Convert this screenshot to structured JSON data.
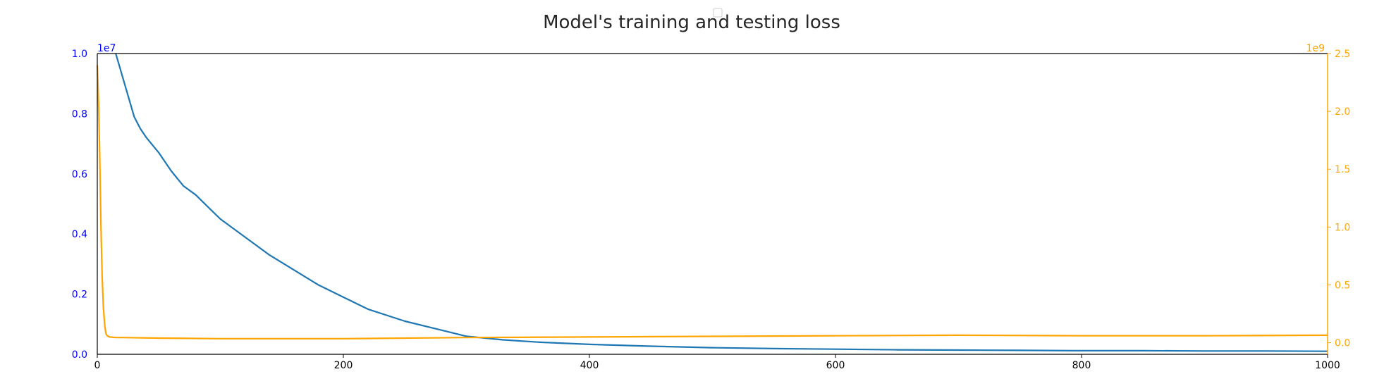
{
  "chart_data": {
    "type": "line",
    "title": "Model's training and testing loss",
    "xlabel": "",
    "xlim": [
      0,
      1000
    ],
    "x_ticks": [
      0,
      200,
      400,
      600,
      800,
      1000
    ],
    "grid": false,
    "legend": "top-center (empty)",
    "axes": {
      "left": {
        "ylabel": "",
        "ylim": [
          0,
          1.0
        ],
        "ticks": [
          "0.0",
          "0.2",
          "0.4",
          "0.6",
          "0.8",
          "1.0"
        ],
        "tick_values": [
          0,
          0.2,
          0.4,
          0.6,
          0.8,
          1.0
        ],
        "scale_label": "1e7",
        "color": "#0000ff"
      },
      "right": {
        "ylabel": "",
        "ylim": [
          -0.1,
          2.5
        ],
        "ticks": [
          "0.0",
          "0.5",
          "1.0",
          "1.5",
          "2.0",
          "2.5"
        ],
        "tick_values": [
          0,
          0.5,
          1.0,
          1.5,
          2.0,
          2.5
        ],
        "scale_label": "1e9",
        "color": "#ffa500"
      }
    },
    "series": [
      {
        "axis": "left",
        "color": "#1f77b4",
        "x": [
          15,
          20,
          25,
          30,
          35,
          40,
          50,
          60,
          70,
          80,
          90,
          100,
          120,
          140,
          160,
          180,
          200,
          220,
          250,
          280,
          300,
          330,
          360,
          400,
          450,
          500,
          550,
          600,
          650,
          700,
          750,
          800,
          850,
          900,
          950,
          1000
        ],
        "y": [
          1.0,
          0.93,
          0.86,
          0.79,
          0.75,
          0.72,
          0.67,
          0.61,
          0.56,
          0.53,
          0.49,
          0.45,
          0.39,
          0.33,
          0.28,
          0.23,
          0.19,
          0.15,
          0.11,
          0.08,
          0.06,
          0.048,
          0.04,
          0.033,
          0.027,
          0.022,
          0.019,
          0.017,
          0.015,
          0.014,
          0.013,
          0.012,
          0.012,
          0.011,
          0.011,
          0.01
        ]
      },
      {
        "axis": "right",
        "color": "#ffa500",
        "x": [
          0,
          1,
          2,
          3,
          4,
          5,
          6,
          7,
          8,
          10,
          15,
          20,
          50,
          100,
          200,
          300,
          400,
          500,
          600,
          700,
          800,
          900,
          1000
        ],
        "y": [
          2.4,
          2.1,
          1.6,
          1.0,
          0.55,
          0.3,
          0.15,
          0.08,
          0.06,
          0.05,
          0.045,
          0.045,
          0.04,
          0.035,
          0.035,
          0.045,
          0.05,
          0.055,
          0.06,
          0.065,
          0.06,
          0.06,
          0.065
        ]
      }
    ]
  }
}
